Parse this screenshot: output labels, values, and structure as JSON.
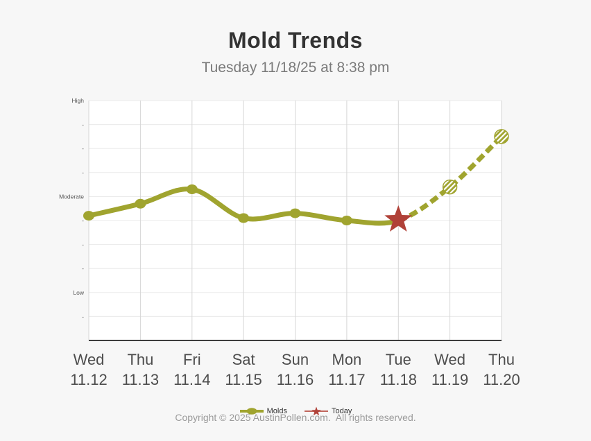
{
  "header": {
    "title": "Mold Trends",
    "subtitle": "Tuesday 11/18/25 at 8:38 pm"
  },
  "colors": {
    "page_bg": "#f7f7f7",
    "plot_bg": "#ffffff",
    "grid_vertical": "#d6d6d6",
    "grid_horizontal": "#eaeaea",
    "axis_line": "#3d3d3d",
    "molds_line": "#a0a42f",
    "today_star": "#b04138",
    "legend_today_line": "#c0655c",
    "title_text": "#333333",
    "subtitle_text": "#7b7b7b",
    "day_label_text": "#4d4d4d",
    "y_tick_text": "#555555",
    "copyright_text": "#9b9b9b"
  },
  "chart_data": {
    "type": "line",
    "title": "Mold Trends",
    "subtitle": "Tuesday 11/18/25 at 8:38 pm",
    "categories": [
      {
        "day": "Wed",
        "date": "11.12"
      },
      {
        "day": "Thu",
        "date": "11.13"
      },
      {
        "day": "Fri",
        "date": "11.14"
      },
      {
        "day": "Sat",
        "date": "11.15"
      },
      {
        "day": "Sun",
        "date": "11.16"
      },
      {
        "day": "Mon",
        "date": "11.17"
      },
      {
        "day": "Tue",
        "date": "11.18"
      },
      {
        "day": "Wed",
        "date": "11.19"
      },
      {
        "day": "Thu",
        "date": "11.20"
      }
    ],
    "y_axis": {
      "min": 0,
      "max": 10,
      "ticks": [
        {
          "value": 10,
          "label": "High"
        },
        {
          "value": 9,
          "label": "-"
        },
        {
          "value": 8,
          "label": "-"
        },
        {
          "value": 7,
          "label": "-"
        },
        {
          "value": 6,
          "label": "Moderate"
        },
        {
          "value": 5,
          "label": "-"
        },
        {
          "value": 4,
          "label": "-"
        },
        {
          "value": 3,
          "label": "-"
        },
        {
          "value": 2,
          "label": "Low"
        },
        {
          "value": 1,
          "label": "-"
        }
      ]
    },
    "ylim": [
      0,
      10
    ],
    "grid": {
      "horizontal": true,
      "vertical": true
    },
    "legend_position": "bottom",
    "series": [
      {
        "name": "Molds",
        "color": "#a0a42f",
        "values": [
          5.2,
          5.7,
          6.3,
          5.1,
          5.3,
          5.0,
          5.0,
          6.4,
          8.5
        ],
        "solid_through_index": 6,
        "forecast_style": "dashed",
        "forecast_marker": "hatched-circle"
      }
    ],
    "today_marker": {
      "name": "Today",
      "category_index": 6,
      "value": 5.0,
      "marker": "star",
      "color": "#b04138"
    }
  },
  "legend": {
    "items": [
      {
        "label": "Molds",
        "color": "#a0a42f",
        "marker": "line-dot"
      },
      {
        "label": "Today",
        "color": "#b04138",
        "marker": "star"
      }
    ]
  },
  "footer": {
    "copyright": "Copyright © 2025 AustinPollen.com.  All rights reserved."
  }
}
